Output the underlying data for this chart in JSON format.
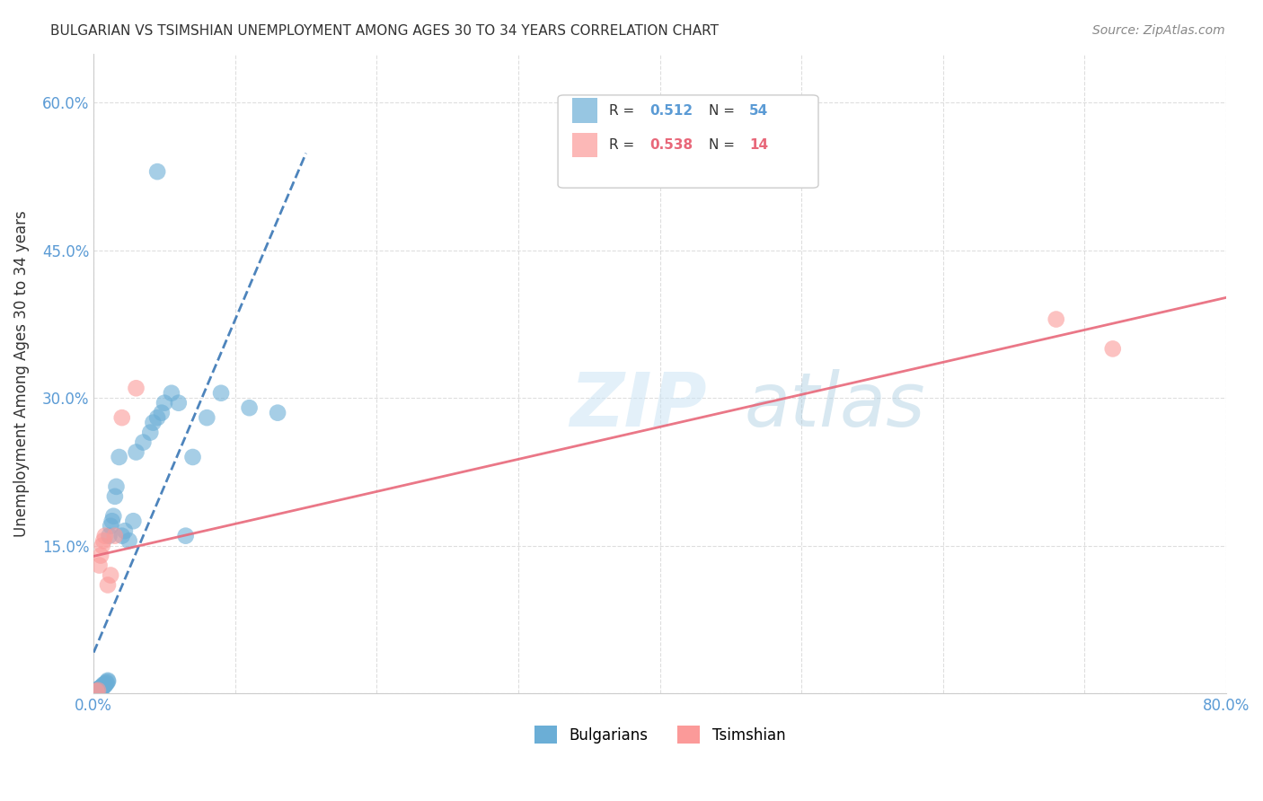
{
  "title": "BULGARIAN VS TSIMSHIAN UNEMPLOYMENT AMONG AGES 30 TO 34 YEARS CORRELATION CHART",
  "source": "Source: ZipAtlas.com",
  "ylabel": "Unemployment Among Ages 30 to 34 years",
  "xlim": [
    0.0,
    0.8
  ],
  "ylim": [
    0.0,
    0.65
  ],
  "xtick_positions": [
    0.0,
    0.1,
    0.2,
    0.3,
    0.4,
    0.5,
    0.6,
    0.7,
    0.8
  ],
  "ytick_positions": [
    0.0,
    0.15,
    0.3,
    0.45,
    0.6
  ],
  "xticklabels": [
    "0.0%",
    "",
    "",
    "",
    "",
    "",
    "",
    "",
    "80.0%"
  ],
  "yticklabels": [
    "",
    "15.0%",
    "30.0%",
    "45.0%",
    "60.0%"
  ],
  "legend_r_bulgarian": "0.512",
  "legend_n_bulgarian": "54",
  "legend_r_tsimshian": "0.538",
  "legend_n_tsimshian": "14",
  "bulgarian_color": "#6baed6",
  "tsimshian_color": "#fb9a99",
  "bulgarian_line_color": "#2166ac",
  "tsimshian_line_color": "#e8687a",
  "background_color": "#ffffff",
  "tick_color": "#5b9bd5",
  "bulgarian_x": [
    0.001,
    0.001,
    0.002,
    0.002,
    0.002,
    0.003,
    0.003,
    0.003,
    0.003,
    0.004,
    0.004,
    0.004,
    0.005,
    0.005,
    0.005,
    0.006,
    0.006,
    0.006,
    0.007,
    0.007,
    0.007,
    0.008,
    0.008,
    0.009,
    0.009,
    0.01,
    0.01,
    0.011,
    0.012,
    0.013,
    0.014,
    0.015,
    0.016,
    0.018,
    0.02,
    0.022,
    0.025,
    0.028,
    0.03,
    0.035,
    0.04,
    0.042,
    0.045,
    0.048,
    0.05,
    0.055,
    0.06,
    0.065,
    0.07,
    0.08,
    0.09,
    0.11,
    0.13,
    0.045
  ],
  "bulgarian_y": [
    0.001,
    0.002,
    0.001,
    0.003,
    0.002,
    0.002,
    0.003,
    0.004,
    0.003,
    0.003,
    0.004,
    0.005,
    0.004,
    0.005,
    0.006,
    0.005,
    0.006,
    0.007,
    0.007,
    0.008,
    0.009,
    0.008,
    0.009,
    0.01,
    0.011,
    0.012,
    0.013,
    0.16,
    0.17,
    0.175,
    0.18,
    0.2,
    0.21,
    0.24,
    0.16,
    0.165,
    0.155,
    0.175,
    0.245,
    0.255,
    0.265,
    0.275,
    0.28,
    0.285,
    0.295,
    0.305,
    0.295,
    0.16,
    0.24,
    0.28,
    0.305,
    0.29,
    0.285,
    0.53
  ],
  "tsimshian_x": [
    0.002,
    0.003,
    0.004,
    0.005,
    0.006,
    0.007,
    0.008,
    0.01,
    0.012,
    0.015,
    0.02,
    0.03,
    0.68,
    0.72
  ],
  "tsimshian_y": [
    0.002,
    0.003,
    0.13,
    0.14,
    0.15,
    0.155,
    0.16,
    0.11,
    0.12,
    0.16,
    0.28,
    0.31,
    0.38,
    0.35
  ]
}
